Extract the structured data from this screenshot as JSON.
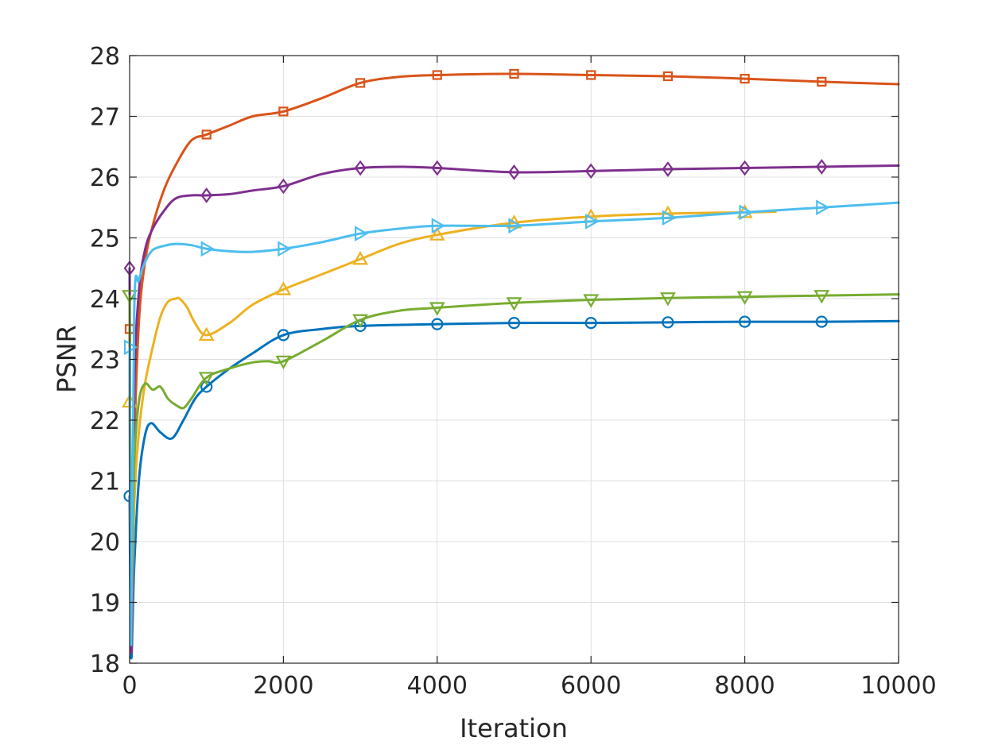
{
  "chart_data": {
    "type": "line",
    "title": "",
    "xlabel": "Iteration",
    "ylabel": "PSNR",
    "xlim": [
      0,
      10000
    ],
    "ylim": [
      18,
      28
    ],
    "xticks": [
      0,
      2000,
      4000,
      6000,
      8000,
      10000
    ],
    "yticks": [
      18,
      19,
      20,
      21,
      22,
      23,
      24,
      25,
      26,
      27,
      28
    ],
    "xtick_labels": [
      "0",
      "2000",
      "4000",
      "6000",
      "8000",
      "10000"
    ],
    "ytick_labels": [
      "18",
      "19",
      "20",
      "21",
      "22",
      "23",
      "24",
      "25",
      "26",
      "27",
      "28"
    ],
    "grid": true,
    "legend": "none",
    "series": [
      {
        "color": "#0072BD",
        "marker": "circle",
        "x": [
          0,
          20,
          60,
          120,
          200,
          280,
          400,
          550,
          700,
          850,
          1000,
          1300,
          1600,
          2000,
          2500,
          3000,
          4000,
          5000,
          6000,
          7000,
          8000,
          9000,
          10000
        ],
        "y": [
          20.75,
          18.1,
          19.6,
          21.0,
          21.75,
          21.95,
          21.8,
          21.7,
          22.0,
          22.35,
          22.55,
          22.85,
          23.1,
          23.4,
          23.5,
          23.55,
          23.58,
          23.6,
          23.6,
          23.61,
          23.62,
          23.62,
          23.63
        ],
        "marker_x": [
          0,
          1000,
          2000,
          3000,
          4000,
          5000,
          6000,
          7000,
          8000,
          9000
        ]
      },
      {
        "color": "#D95319",
        "marker": "square",
        "x": [
          0,
          20,
          60,
          120,
          200,
          300,
          450,
          600,
          800,
          1000,
          1300,
          1600,
          2000,
          2500,
          3000,
          3500,
          4000,
          5000,
          6000,
          7000,
          8000,
          9000,
          10000
        ],
        "y": [
          23.5,
          18.2,
          21.5,
          23.6,
          24.6,
          25.2,
          25.8,
          26.2,
          26.6,
          26.7,
          26.85,
          27.0,
          27.08,
          27.3,
          27.55,
          27.65,
          27.68,
          27.7,
          27.68,
          27.66,
          27.62,
          27.57,
          27.53
        ],
        "marker_x": [
          0,
          1000,
          2000,
          3000,
          4000,
          5000,
          6000,
          7000,
          8000,
          9000
        ]
      },
      {
        "color": "#EDB120",
        "marker": "triangle-up",
        "x": [
          0,
          20,
          60,
          120,
          200,
          300,
          400,
          500,
          600,
          650,
          750,
          850,
          1000,
          1300,
          1600,
          2000,
          2500,
          3000,
          3500,
          4000,
          5000,
          6000,
          7000,
          8000,
          8400
        ],
        "y": [
          22.3,
          18.3,
          20.6,
          21.8,
          22.6,
          23.2,
          23.7,
          23.95,
          24.0,
          24.0,
          23.85,
          23.6,
          23.4,
          23.6,
          23.9,
          24.15,
          24.4,
          24.65,
          24.9,
          25.05,
          25.25,
          25.35,
          25.4,
          25.42,
          25.43
        ],
        "marker_x": [
          0,
          1000,
          2000,
          3000,
          4000,
          5000,
          6000,
          7000,
          8000
        ]
      },
      {
        "color": "#7E2F8E",
        "marker": "diamond",
        "x": [
          0,
          20,
          60,
          120,
          200,
          300,
          450,
          600,
          800,
          1000,
          1300,
          1600,
          2000,
          2500,
          3000,
          3500,
          4000,
          5000,
          6000,
          7000,
          8000,
          9000,
          10000
        ],
        "y": [
          24.5,
          18.2,
          22.5,
          24.1,
          24.8,
          25.15,
          25.45,
          25.65,
          25.7,
          25.7,
          25.72,
          25.78,
          25.85,
          26.05,
          26.15,
          26.17,
          26.15,
          26.08,
          26.1,
          26.13,
          26.15,
          26.17,
          26.19
        ],
        "marker_x": [
          0,
          1000,
          2000,
          3000,
          4000,
          5000,
          6000,
          7000,
          8000,
          9000
        ]
      },
      {
        "color": "#77AC30",
        "marker": "triangle-down",
        "x": [
          0,
          20,
          60,
          120,
          200,
          300,
          400,
          500,
          600,
          700,
          800,
          1000,
          1300,
          1600,
          1800,
          2000,
          2500,
          3000,
          3500,
          4000,
          5000,
          6000,
          7000,
          8000,
          9000,
          10000
        ],
        "y": [
          24.05,
          19.4,
          21.3,
          22.3,
          22.6,
          22.5,
          22.55,
          22.35,
          22.25,
          22.2,
          22.35,
          22.7,
          22.85,
          22.95,
          22.97,
          22.97,
          23.3,
          23.65,
          23.8,
          23.85,
          23.93,
          23.98,
          24.01,
          24.03,
          24.05,
          24.07
        ],
        "marker_x": [
          0,
          1000,
          2000,
          3000,
          4000,
          5000,
          6000,
          7000,
          8000,
          9000
        ]
      },
      {
        "color": "#4DBEEE",
        "marker": "triangle-right",
        "x": [
          0,
          20,
          60,
          120,
          200,
          300,
          450,
          600,
          800,
          1000,
          1300,
          1600,
          2000,
          2500,
          3000,
          3500,
          4000,
          5000,
          6000,
          7000,
          8000,
          9000,
          10000
        ],
        "y": [
          23.2,
          18.3,
          23.8,
          24.3,
          24.6,
          24.8,
          24.87,
          24.9,
          24.88,
          24.82,
          24.78,
          24.77,
          24.82,
          24.93,
          25.07,
          25.15,
          25.2,
          25.2,
          25.27,
          25.33,
          25.42,
          25.5,
          25.58
        ],
        "marker_x": [
          0,
          1000,
          2000,
          3000,
          4000,
          5000,
          6000,
          7000,
          8000,
          9000
        ]
      }
    ]
  }
}
